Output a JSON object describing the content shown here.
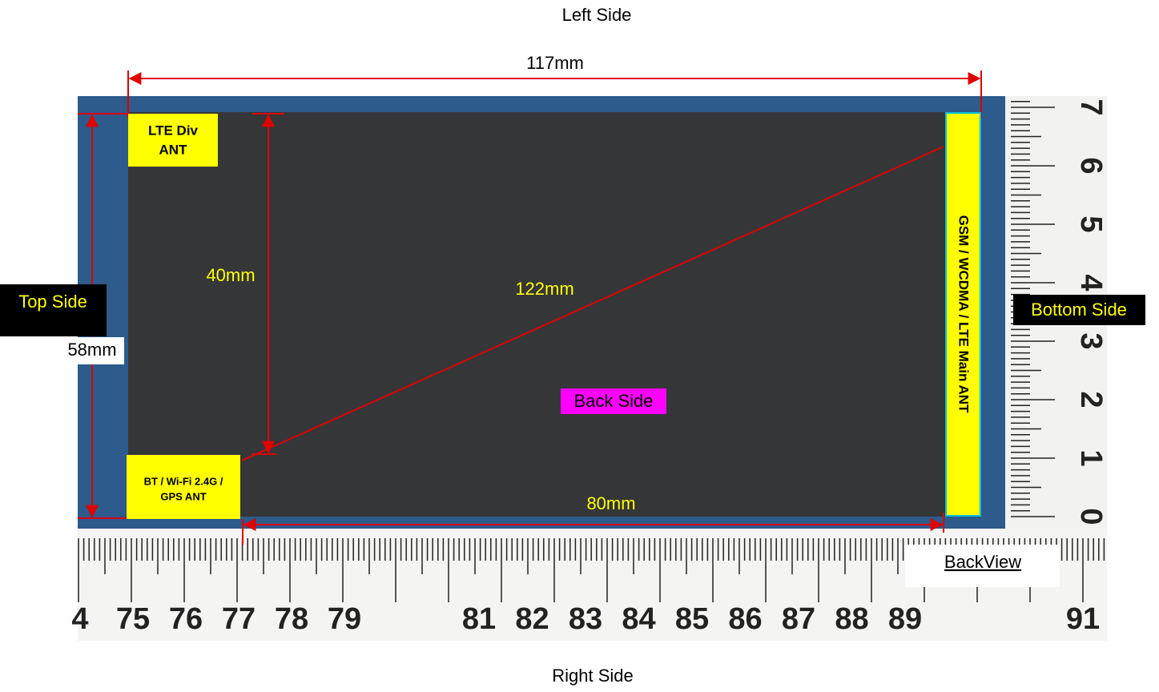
{
  "labels": {
    "left_side": "Left Side",
    "right_side": "Right Side",
    "top_side": "Top Side",
    "bottom_side": "Bottom Side",
    "back_side": "Back Side",
    "view": "BackView"
  },
  "dimensions": {
    "width": "117mm",
    "height": "58mm",
    "inner_height": "40mm",
    "diagonal": "122mm",
    "inner_width": "80mm"
  },
  "antennas": {
    "lte_div": [
      "LTE Div",
      "ANT"
    ],
    "bt_wifi_gps": [
      "BT / Wi-Fi 2.4G /",
      "GPS ANT"
    ],
    "main": "GSM / WCDMA / LTE Main ANT"
  },
  "rulers": {
    "bottom_left": [
      "4",
      "75",
      "76",
      "77",
      "78",
      "79"
    ],
    "bottom_right": [
      "81",
      "82",
      "83",
      "84",
      "85",
      "86",
      "87",
      "88",
      "89"
    ],
    "bottom_end": "91",
    "side": [
      "0",
      "1",
      "2",
      "3",
      "4",
      "5",
      "6",
      "7"
    ]
  }
}
